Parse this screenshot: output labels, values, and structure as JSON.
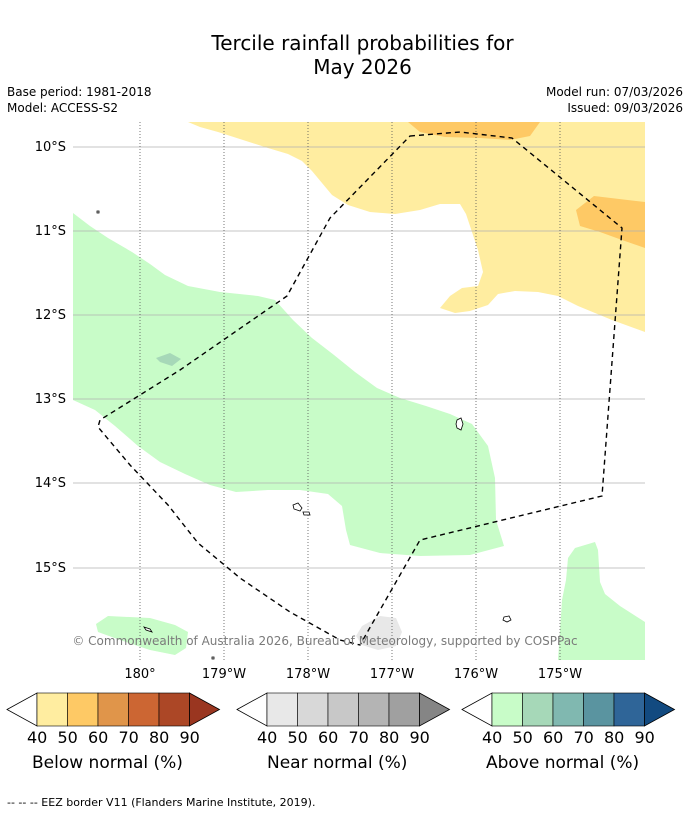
{
  "title_line1": "Tercile rainfall probabilities for",
  "title_line2": "May 2026",
  "meta": {
    "base_period": "Base period: 1981-2018",
    "model": "Model: ACCESS-S2",
    "model_run": "Model run: 07/03/2026",
    "issued": "Issued: 09/03/2026"
  },
  "lat_labels": [
    "10°S",
    "11°S",
    "12°S",
    "13°S",
    "14°S",
    "15°S"
  ],
  "lon_labels": [
    "180°",
    "179°W",
    "178°W",
    "177°W",
    "176°W",
    "175°W"
  ],
  "copyright": "© Commonwealth of Australia 2026, Bureau of Meteorology, supported by COSPPac",
  "colorbars": [
    {
      "title": "Below normal (%)",
      "ticks": [
        "40",
        "50",
        "60",
        "70",
        "80",
        "90"
      ],
      "colors": [
        "#ffeda0",
        "#fec965",
        "#e0954a",
        "#cc6633",
        "#ac4726",
        "#9a3620"
      ]
    },
    {
      "title": "Near normal (%)",
      "ticks": [
        "40",
        "50",
        "60",
        "70",
        "80",
        "90"
      ],
      "colors": [
        "#e8e8e8",
        "#d8d8d8",
        "#c8c8c8",
        "#b4b4b4",
        "#a0a0a0",
        "#858585"
      ]
    },
    {
      "title": "Above normal (%)",
      "ticks": [
        "40",
        "50",
        "60",
        "70",
        "80",
        "90"
      ],
      "colors": [
        "#c8fcc8",
        "#a6d8b8",
        "#80b8b0",
        "#5a94a0",
        "#2f6598",
        "#124a80"
      ]
    }
  ],
  "footnote": "--  --  -- EEZ border V11 (Flanders Marine Institute, 2019).",
  "colors": {
    "below_light": "#ffeda0",
    "below_mid": "#fec965",
    "above_light": "#c8fcc8",
    "above_mid": "#a6d8b8",
    "near_light": "#e8e8e8"
  }
}
